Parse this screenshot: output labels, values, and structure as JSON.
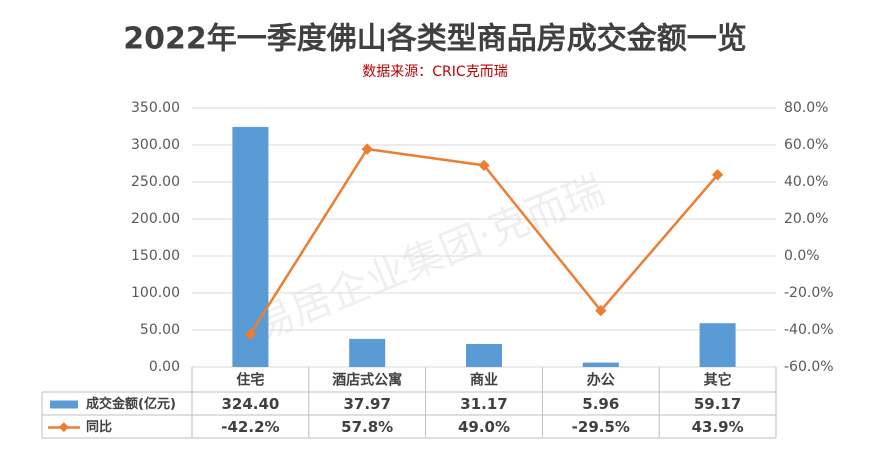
{
  "chart_data": {
    "type": "bar",
    "title": "2022年一季度佛山各类型商品房成交金额一览",
    "subtitle": "数据来源：CRIC克而瑞",
    "watermark": "易居企业集团·克而瑞",
    "categories": [
      "住宅",
      "酒店式公寓",
      "商业",
      "办公",
      "其它"
    ],
    "series": [
      {
        "name": "成交金额(亿元)",
        "type": "bar",
        "color": "#5b9bd5",
        "values": [
          324.4,
          37.97,
          31.17,
          5.96,
          59.17
        ],
        "value_labels": [
          "324.40",
          "37.97",
          "31.17",
          "5.96",
          "59.17"
        ]
      },
      {
        "name": "同比",
        "type": "line",
        "axis": "y2",
        "color": "#ed7d31",
        "values": [
          -42.2,
          57.8,
          49.0,
          -29.5,
          43.9
        ],
        "value_labels": [
          "-42.2%",
          "57.8%",
          "49.0%",
          "-29.5%",
          "43.9%"
        ]
      }
    ],
    "ylim": [
      0,
      350
    ],
    "yticks": [
      {
        "value": 0,
        "label": "0.00"
      },
      {
        "value": 50,
        "label": "50.00"
      },
      {
        "value": 100,
        "label": "100.00"
      },
      {
        "value": 150,
        "label": "150.00"
      },
      {
        "value": 200,
        "label": "200.00"
      },
      {
        "value": 250,
        "label": "250.00"
      },
      {
        "value": 300,
        "label": "300.00"
      },
      {
        "value": 350,
        "label": "350.00"
      }
    ],
    "y2lim": [
      -60,
      80
    ],
    "y2ticks": [
      {
        "value": -60,
        "label": "-60.0%"
      },
      {
        "value": -40,
        "label": "-40.0%"
      },
      {
        "value": -20,
        "label": "-20.0%"
      },
      {
        "value": 0,
        "label": "0.0%"
      },
      {
        "value": 20,
        "label": "20.0%"
      },
      {
        "value": 40,
        "label": "40.0%"
      },
      {
        "value": 60,
        "label": "60.0%"
      },
      {
        "value": 80,
        "label": "80.0%"
      }
    ],
    "grid": true
  }
}
